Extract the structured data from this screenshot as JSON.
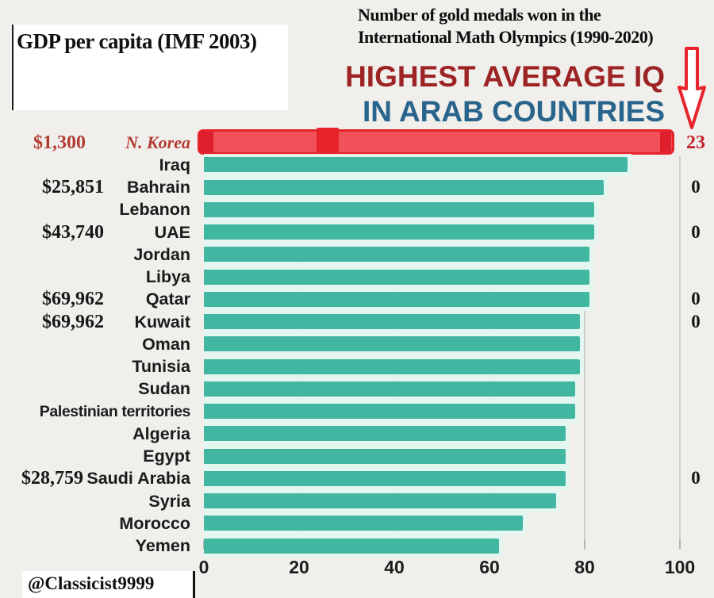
{
  "top_left_box": {
    "text": "GDP per capita (IMF 2003)"
  },
  "top_right_note": {
    "line1": "Number of gold medals won in the",
    "line2": "International Math Olympics (1990-2020)"
  },
  "title": {
    "line1": "HIGHEST AVERAGE IQ",
    "line2": "IN ARAB COUNTRIES"
  },
  "watermark": {
    "handle": "@Classicist9999"
  },
  "colors": {
    "background": "#f0efec",
    "bar_teal": "#41b7a1",
    "bar_halo_mint": "#e4f6f0",
    "title_red": "#9d2425",
    "title_blue": "#29648c",
    "marker_red_fill": "#f15158",
    "marker_red_edge": "#e5232b",
    "annotation_red_text": "#b23b33",
    "medal_23_red": "#c2232a",
    "label_black": "#1b1b1b"
  },
  "chart_data": {
    "type": "bar",
    "orientation": "horizontal",
    "title": "HIGHEST AVERAGE IQ IN ARAB COUNTRIES",
    "xlim": [
      0,
      100
    ],
    "x_ticks": [
      0,
      20,
      40,
      60,
      80,
      100
    ],
    "grid": "vertical",
    "legend": "none",
    "categories": [
      "N. Korea",
      "Iraq",
      "Bahrain",
      "Lebanon",
      "UAE",
      "Jordan",
      "Libya",
      "Qatar",
      "Kuwait",
      "Oman",
      "Tunisia",
      "Sudan",
      "Palestinian territories",
      "Algeria",
      "Egypt",
      "Saudi Arabia",
      "Syria",
      "Morocco",
      "Yemen"
    ],
    "series": [
      {
        "name": "Average IQ",
        "values": [
          98,
          89,
          84,
          82,
          82,
          81,
          81,
          81,
          79,
          79,
          79,
          78,
          78,
          76,
          76,
          76,
          74,
          67,
          62
        ]
      }
    ],
    "gdp_per_capita": [
      "$1,300",
      null,
      "$25,851",
      null,
      "$43,740",
      null,
      null,
      "$69,962",
      "$69,962",
      null,
      null,
      null,
      null,
      null,
      null,
      "$28,759",
      null,
      null,
      null
    ],
    "gold_medals": [
      "23",
      null,
      "0",
      null,
      "0",
      null,
      null,
      "0",
      "0",
      null,
      null,
      null,
      null,
      null,
      null,
      "0",
      null,
      null,
      null
    ],
    "highlight": "N. Korea",
    "highlight_style": "red-marker-bar"
  }
}
